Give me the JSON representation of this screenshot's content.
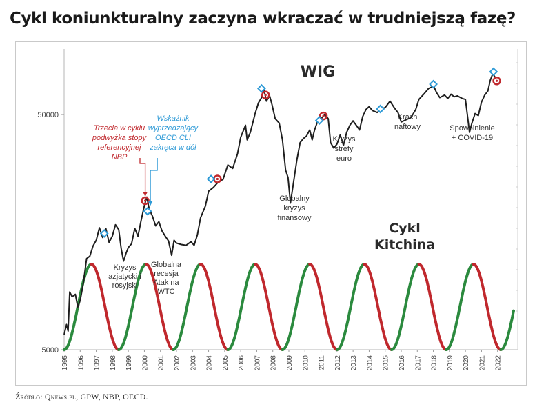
{
  "title": "Cykl koniunkturalny zaczyna wkraczać w trudniejszą fazę?",
  "source": "Źródło: Qnews.pl, GPW, NBP, OECD.",
  "colors": {
    "wig_line": "#1e1e1e",
    "red_marker": "#c0282d",
    "blue_marker": "#2e9ad6",
    "cycle_red": "#c0282d",
    "cycle_green": "#2b8a3e",
    "annot_red": "#c0282d",
    "annot_blue": "#2e9ad6",
    "text": "#333333"
  },
  "chart_data": {
    "type": "line",
    "wig_label": "WIG",
    "kitchin_label": [
      "Cykl",
      "Kitchina"
    ],
    "y_scale": "log",
    "y_ticks": [
      {
        "value": 5000,
        "label": "5000"
      },
      {
        "value": 50000,
        "label": "50000"
      }
    ],
    "x_ticks": [
      "1995",
      "1996",
      "1997",
      "1998",
      "1999",
      "2000",
      "2001",
      "2002",
      "2003",
      "2004",
      "2005",
      "2006",
      "2007",
      "2008",
      "2009",
      "2010",
      "2011",
      "2012",
      "2013",
      "2014",
      "2015",
      "2016",
      "2017",
      "2018",
      "2019",
      "2020",
      "2021",
      "2022"
    ],
    "x_range": [
      1995.0,
      2023.0
    ],
    "y_range": [
      5000,
      90000
    ],
    "series": [
      {
        "key": "wig",
        "points": [
          [
            1995.0,
            5800
          ],
          [
            1995.15,
            6400
          ],
          [
            1995.25,
            6000
          ],
          [
            1995.35,
            8800
          ],
          [
            1995.5,
            8400
          ],
          [
            1995.7,
            8600
          ],
          [
            1995.85,
            7600
          ],
          [
            1996.0,
            8100
          ],
          [
            1996.2,
            9600
          ],
          [
            1996.4,
            12200
          ],
          [
            1996.6,
            12500
          ],
          [
            1996.8,
            13800
          ],
          [
            1997.0,
            14600
          ],
          [
            1997.2,
            16500
          ],
          [
            1997.4,
            15000
          ],
          [
            1997.6,
            16400
          ],
          [
            1997.8,
            14300
          ],
          [
            1998.0,
            15200
          ],
          [
            1998.2,
            17000
          ],
          [
            1998.4,
            16200
          ],
          [
            1998.55,
            13500
          ],
          [
            1998.7,
            11900
          ],
          [
            1998.85,
            12800
          ],
          [
            1999.0,
            13600
          ],
          [
            1999.2,
            14100
          ],
          [
            1999.4,
            16400
          ],
          [
            1999.6,
            15200
          ],
          [
            1999.8,
            17800
          ],
          [
            2000.0,
            20500
          ],
          [
            2000.15,
            22300
          ],
          [
            2000.3,
            19800
          ],
          [
            2000.5,
            18500
          ],
          [
            2000.7,
            16800
          ],
          [
            2000.9,
            17500
          ],
          [
            2001.1,
            16000
          ],
          [
            2001.3,
            15200
          ],
          [
            2001.5,
            14500
          ],
          [
            2001.7,
            12600
          ],
          [
            2001.85,
            14600
          ],
          [
            2002.0,
            14200
          ],
          [
            2002.3,
            14000
          ],
          [
            2002.6,
            13900
          ],
          [
            2002.9,
            14400
          ],
          [
            2003.1,
            13900
          ],
          [
            2003.3,
            15400
          ],
          [
            2003.5,
            18200
          ],
          [
            2003.8,
            20400
          ],
          [
            2004.0,
            23600
          ],
          [
            2004.3,
            24500
          ],
          [
            2004.6,
            25800
          ],
          [
            2004.9,
            26500
          ],
          [
            2005.2,
            30500
          ],
          [
            2005.5,
            29500
          ],
          [
            2005.8,
            34000
          ],
          [
            2006.0,
            40000
          ],
          [
            2006.3,
            45000
          ],
          [
            2006.4,
            39000
          ],
          [
            2006.6,
            42000
          ],
          [
            2006.9,
            50500
          ],
          [
            2007.1,
            56000
          ],
          [
            2007.3,
            59000
          ],
          [
            2007.45,
            64000
          ],
          [
            2007.6,
            57000
          ],
          [
            2007.8,
            60000
          ],
          [
            2007.95,
            55000
          ],
          [
            2008.15,
            48000
          ],
          [
            2008.4,
            46000
          ],
          [
            2008.6,
            39000
          ],
          [
            2008.8,
            29000
          ],
          [
            2008.95,
            27000
          ],
          [
            2009.1,
            21000
          ],
          [
            2009.3,
            26000
          ],
          [
            2009.5,
            32000
          ],
          [
            2009.7,
            38000
          ],
          [
            2009.9,
            39500
          ],
          [
            2010.1,
            40500
          ],
          [
            2010.3,
            43000
          ],
          [
            2010.45,
            39000
          ],
          [
            2010.6,
            43000
          ],
          [
            2010.8,
            47000
          ],
          [
            2011.0,
            48000
          ],
          [
            2011.25,
            50000
          ],
          [
            2011.45,
            48000
          ],
          [
            2011.6,
            38000
          ],
          [
            2011.8,
            36000
          ],
          [
            2012.0,
            37500
          ],
          [
            2012.2,
            41000
          ],
          [
            2012.4,
            37000
          ],
          [
            2012.6,
            42000
          ],
          [
            2012.8,
            45000
          ],
          [
            2013.0,
            47000
          ],
          [
            2013.2,
            45000
          ],
          [
            2013.4,
            43000
          ],
          [
            2013.6,
            49000
          ],
          [
            2013.8,
            52500
          ],
          [
            2014.0,
            54000
          ],
          [
            2014.2,
            52000
          ],
          [
            2014.5,
            51000
          ],
          [
            2014.8,
            53000
          ],
          [
            2015.0,
            53500
          ],
          [
            2015.3,
            57000
          ],
          [
            2015.6,
            53000
          ],
          [
            2015.8,
            51000
          ],
          [
            2016.0,
            46500
          ],
          [
            2016.3,
            47500
          ],
          [
            2016.6,
            48500
          ],
          [
            2016.9,
            52500
          ],
          [
            2017.1,
            58000
          ],
          [
            2017.4,
            61000
          ],
          [
            2017.7,
            64500
          ],
          [
            2017.9,
            65500
          ],
          [
            2018.0,
            66500
          ],
          [
            2018.2,
            62000
          ],
          [
            2018.4,
            59000
          ],
          [
            2018.7,
            60500
          ],
          [
            2018.9,
            58500
          ],
          [
            2019.1,
            61000
          ],
          [
            2019.3,
            59500
          ],
          [
            2019.5,
            60000
          ],
          [
            2019.8,
            58500
          ],
          [
            2020.0,
            58000
          ],
          [
            2020.15,
            48000
          ],
          [
            2020.25,
            42000
          ],
          [
            2020.4,
            46000
          ],
          [
            2020.6,
            50500
          ],
          [
            2020.8,
            49500
          ],
          [
            2021.0,
            56500
          ],
          [
            2021.2,
            60500
          ],
          [
            2021.4,
            63000
          ],
          [
            2021.55,
            70000
          ],
          [
            2021.7,
            74500
          ],
          [
            2021.85,
            72000
          ]
        ]
      }
    ],
    "red_markers": [
      [
        2000.05,
        21500
      ],
      [
        2004.55,
        26600
      ],
      [
        2007.55,
        60500
      ],
      [
        2011.15,
        49300
      ],
      [
        2021.95,
        69500
      ]
    ],
    "blue_markers": [
      [
        1997.5,
        15600
      ],
      [
        2000.2,
        19400
      ],
      [
        2004.15,
        26600
      ],
      [
        2007.3,
        64500
      ],
      [
        2010.9,
        47200
      ],
      [
        2014.7,
        52800
      ],
      [
        2018.0,
        67300
      ],
      [
        2021.75,
        76000
      ]
    ],
    "kitchin_cycle": {
      "first_trough": 1995.0,
      "period_years": 3.4,
      "segments": "green-rise-red-fall"
    },
    "annotations": [
      {
        "key": "nbp",
        "lines": [
          "Trzecia w cyklu",
          "podwyżka stopy",
          "referencyjnej",
          "NBP"
        ],
        "color": "annot_red",
        "italic": true
      },
      {
        "key": "oecd",
        "lines": [
          "Wskaźnik",
          "wyprzedzający",
          "OECD CLI",
          "zakręca w dół"
        ],
        "color": "annot_blue",
        "italic": true
      },
      {
        "key": "asia",
        "lines": [
          "Kryzys",
          "azjatycki i",
          "rosyjski"
        ]
      },
      {
        "key": "recesja",
        "lines": [
          "Globalna",
          "recesja",
          "Atak na",
          "WTC"
        ]
      },
      {
        "key": "gkf",
        "lines": [
          "Globalny",
          "kryzys",
          "finansowy"
        ]
      },
      {
        "key": "euro",
        "lines": [
          "Kryzys",
          "strefy",
          "euro"
        ]
      },
      {
        "key": "naft",
        "lines": [
          "Krach",
          "naftowy"
        ]
      },
      {
        "key": "covid",
        "lines": [
          "Spowolnienie",
          "+ COVID-19"
        ]
      }
    ]
  }
}
